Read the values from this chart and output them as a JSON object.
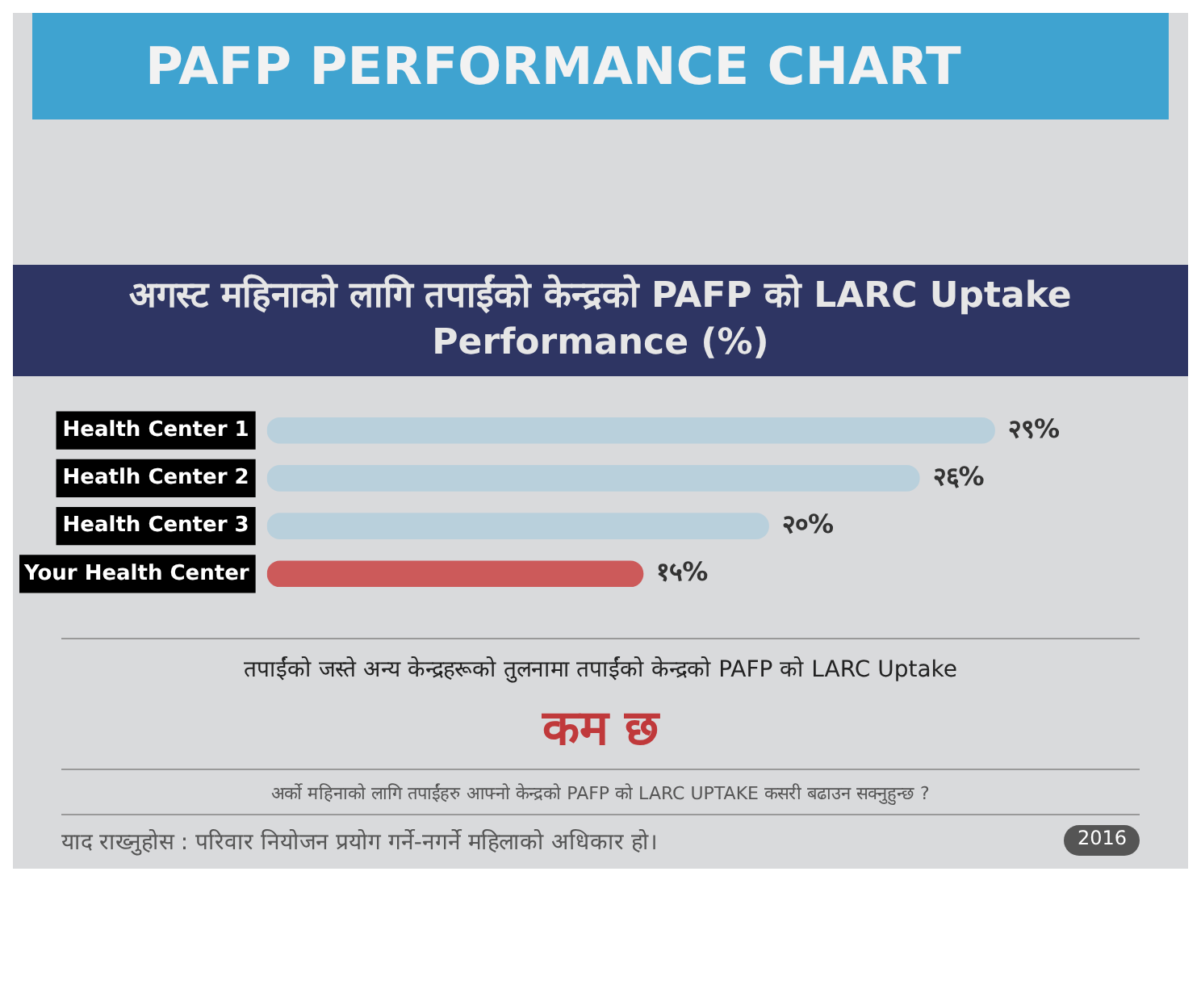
{
  "chart_data": {
    "type": "bar",
    "orientation": "horizontal",
    "title": "PAFP PERFORMANCE CHART",
    "subtitle": "अगस्ट महिनाको लागि तपाईंको केन्द्रको PAFP को  LARC Uptake Performance (%)",
    "categories": [
      "Health Center 1",
      "Heatlh Center 2",
      "Health Center 3",
      "Your Health Center"
    ],
    "values": [
      29,
      26,
      20,
      15
    ],
    "colors": [
      "#b9d0dc",
      "#b9d0dc",
      "#b9d0dc",
      "#cc5a5a"
    ],
    "value_labels": [
      "२९%",
      "२६%",
      "२०%",
      "१५%"
    ],
    "annotations": [
      "तपाईंको जस्ते अन्य केन्द्रहरूको तुलनामा तपाईंको केन्द्रको PAFP को LARC Uptake",
      "कम छ",
      "अर्को महिनाको लागि तपाईंहरु आफ्नो केन्द्रको PAFP को LARC UPTAKE कसरी बढाउन सक्नुहुन्छ ?",
      "याद राख्नुहोस : परिवार नियोजन प्रयोग गर्ने-नगर्ने महिलाको अधिकार हो।",
      "2016"
    ],
    "grid": false,
    "legend": false
  }
}
